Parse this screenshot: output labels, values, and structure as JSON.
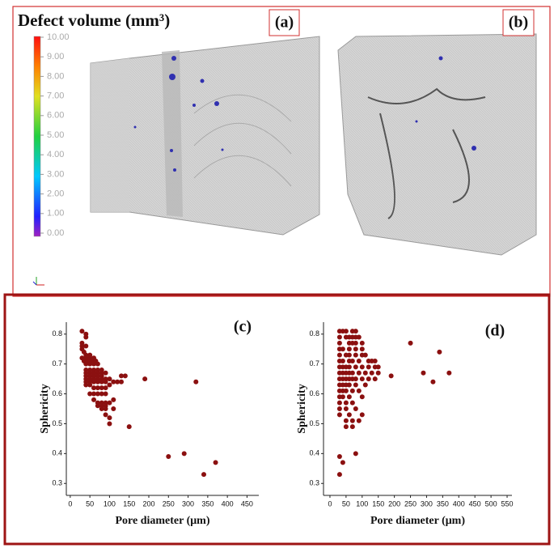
{
  "colorbar": {
    "title": "Defect volume (mm³)",
    "ticks": [
      {
        "value": 10,
        "label": "10.00"
      },
      {
        "value": 9,
        "label": "9.00"
      },
      {
        "value": 8,
        "label": "8.00"
      },
      {
        "value": 7,
        "label": "7.00"
      },
      {
        "value": 6,
        "label": "6.00"
      },
      {
        "value": 5,
        "label": "5.00"
      },
      {
        "value": 4,
        "label": "4.00"
      },
      {
        "value": 3,
        "label": "3.00"
      },
      {
        "value": 2,
        "label": "2.00"
      },
      {
        "value": 1,
        "label": "1.00"
      },
      {
        "value": 0,
        "label": "0.00"
      }
    ]
  },
  "panels": [
    "(a)",
    "(b)"
  ],
  "chart_data": [
    {
      "type": "scatter",
      "label": "(c)",
      "x_label": "Pore diameter (μm)",
      "y_label": "Sphericity",
      "color": "#8b1010",
      "xlim": [
        -10,
        480
      ],
      "ylim": [
        0.26,
        0.84
      ],
      "xticks": [
        0,
        50,
        100,
        150,
        200,
        250,
        300,
        350,
        400,
        450
      ],
      "yticks": [
        0.3,
        0.4,
        0.5,
        0.6,
        0.7,
        0.8
      ],
      "x": [
        30,
        40,
        40,
        30,
        30,
        40,
        30,
        35,
        40,
        50,
        30,
        40,
        50,
        60,
        35,
        45,
        55,
        65,
        40,
        50,
        60,
        70,
        40,
        50,
        60,
        70,
        80,
        40,
        50,
        60,
        70,
        80,
        90,
        40,
        50,
        60,
        70,
        80,
        40,
        50,
        60,
        70,
        80,
        90,
        100,
        40,
        50,
        60,
        70,
        80,
        90,
        110,
        120,
        130,
        40,
        50,
        60,
        70,
        80,
        90,
        100,
        50,
        60,
        70,
        80,
        90,
        60,
        70,
        80,
        90,
        100,
        110,
        70,
        80,
        90,
        80,
        90,
        110,
        90,
        100,
        100,
        130,
        140,
        150,
        190,
        250,
        290,
        320,
        340,
        370
      ],
      "values": [
        0.81,
        0.8,
        0.79,
        0.77,
        0.76,
        0.76,
        0.75,
        0.74,
        0.73,
        0.73,
        0.72,
        0.72,
        0.72,
        0.72,
        0.71,
        0.71,
        0.71,
        0.71,
        0.7,
        0.7,
        0.7,
        0.7,
        0.68,
        0.68,
        0.68,
        0.68,
        0.68,
        0.67,
        0.67,
        0.67,
        0.67,
        0.67,
        0.67,
        0.66,
        0.66,
        0.66,
        0.66,
        0.66,
        0.65,
        0.65,
        0.65,
        0.65,
        0.65,
        0.65,
        0.65,
        0.64,
        0.64,
        0.64,
        0.64,
        0.64,
        0.64,
        0.64,
        0.64,
        0.64,
        0.63,
        0.63,
        0.62,
        0.62,
        0.62,
        0.62,
        0.63,
        0.6,
        0.6,
        0.6,
        0.6,
        0.6,
        0.58,
        0.57,
        0.57,
        0.57,
        0.57,
        0.58,
        0.56,
        0.56,
        0.56,
        0.55,
        0.55,
        0.55,
        0.53,
        0.52,
        0.5,
        0.66,
        0.66,
        0.49,
        0.65,
        0.39,
        0.4,
        0.64,
        0.33,
        0.37
      ]
    },
    {
      "type": "scatter",
      "label": "(d)",
      "x_label": "Pore diameter (μm)",
      "y_label": "Sphericity",
      "color": "#8b1010",
      "xlim": [
        -20,
        565
      ],
      "ylim": [
        0.26,
        0.84
      ],
      "xticks": [
        0,
        50,
        100,
        150,
        200,
        250,
        300,
        350,
        400,
        450,
        500,
        550
      ],
      "yticks": [
        0.3,
        0.4,
        0.5,
        0.6,
        0.7,
        0.8
      ],
      "x": [
        30,
        40,
        50,
        70,
        80,
        30,
        50,
        60,
        70,
        80,
        90,
        30,
        60,
        70,
        80,
        100,
        30,
        40,
        60,
        80,
        100,
        30,
        50,
        60,
        80,
        100,
        110,
        30,
        40,
        60,
        70,
        90,
        120,
        130,
        140,
        30,
        40,
        50,
        60,
        80,
        100,
        120,
        140,
        150,
        30,
        40,
        50,
        60,
        70,
        90,
        110,
        130,
        150,
        30,
        40,
        50,
        60,
        70,
        80,
        100,
        120,
        140,
        30,
        40,
        50,
        60,
        80,
        110,
        30,
        40,
        50,
        70,
        90,
        30,
        40,
        60,
        100,
        30,
        50,
        70,
        30,
        50,
        80,
        30,
        60,
        100,
        50,
        70,
        90,
        50,
        70,
        30,
        40,
        30,
        80,
        190,
        250,
        290,
        320,
        340,
        370
      ],
      "values": [
        0.81,
        0.81,
        0.81,
        0.81,
        0.81,
        0.79,
        0.79,
        0.79,
        0.79,
        0.79,
        0.79,
        0.77,
        0.77,
        0.77,
        0.77,
        0.77,
        0.75,
        0.75,
        0.75,
        0.75,
        0.75,
        0.73,
        0.73,
        0.73,
        0.73,
        0.73,
        0.73,
        0.71,
        0.71,
        0.71,
        0.71,
        0.71,
        0.71,
        0.71,
        0.71,
        0.69,
        0.69,
        0.69,
        0.69,
        0.69,
        0.69,
        0.69,
        0.69,
        0.69,
        0.67,
        0.67,
        0.67,
        0.67,
        0.67,
        0.67,
        0.67,
        0.67,
        0.67,
        0.65,
        0.65,
        0.65,
        0.65,
        0.65,
        0.65,
        0.65,
        0.65,
        0.65,
        0.63,
        0.63,
        0.63,
        0.63,
        0.63,
        0.63,
        0.61,
        0.61,
        0.61,
        0.61,
        0.61,
        0.59,
        0.59,
        0.59,
        0.59,
        0.57,
        0.57,
        0.57,
        0.55,
        0.55,
        0.55,
        0.53,
        0.53,
        0.53,
        0.51,
        0.51,
        0.51,
        0.49,
        0.49,
        0.39,
        0.37,
        0.33,
        0.4,
        0.66,
        0.77,
        0.67,
        0.64,
        0.74,
        0.67
      ]
    }
  ]
}
